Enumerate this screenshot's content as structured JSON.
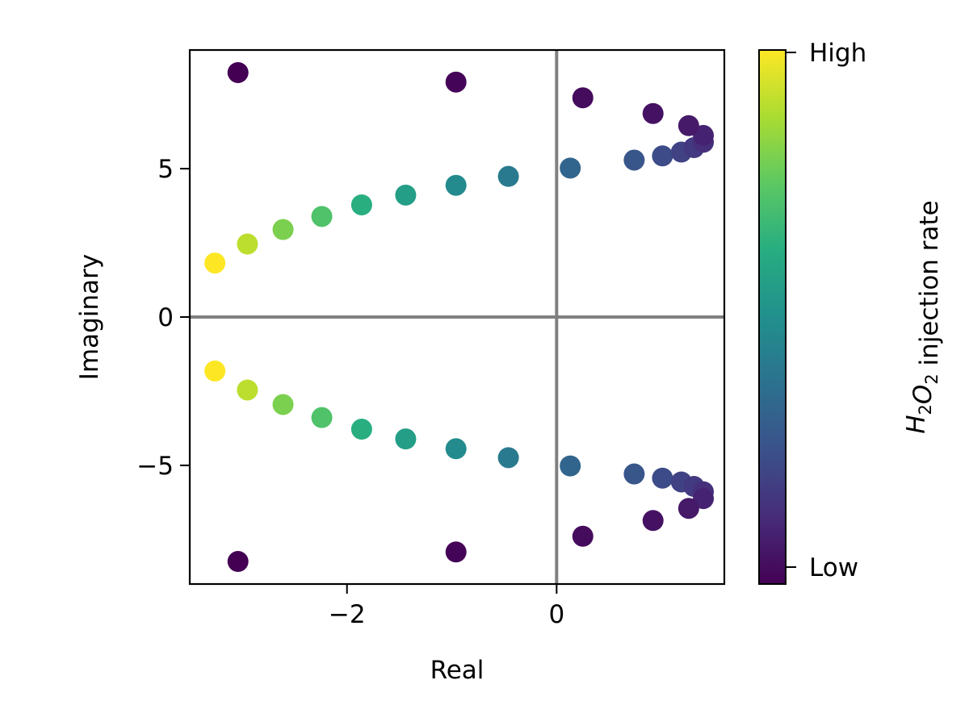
{
  "chart_data": {
    "type": "scatter",
    "title": "",
    "xlabel": "Real",
    "ylabel": "Imaginary",
    "xlim": [
      -3.5,
      1.6
    ],
    "ylim": [
      -9.0,
      9.0
    ],
    "xticks": [
      -2,
      0
    ],
    "xtick_labels": [
      "−2",
      "0"
    ],
    "yticks": [
      -5,
      0,
      5
    ],
    "ytick_labels": [
      "−5",
      "0",
      "5"
    ],
    "grid": false,
    "reference_lines": {
      "x": 0,
      "y": 0,
      "color": "#808080"
    },
    "colormap": "viridis",
    "colorbar": {
      "label_parts": [
        {
          "text": "H",
          "style": "italic"
        },
        {
          "text": "2",
          "style": "sub"
        },
        {
          "text": "O",
          "style": "italic"
        },
        {
          "text": "2",
          "style": "sub"
        },
        {
          "text": " injection rate",
          "style": "normal"
        }
      ],
      "high_label": "High",
      "low_label": "Low"
    },
    "points": [
      {
        "x": -3.26,
        "y": 1.82,
        "c": 1.0
      },
      {
        "x": -3.26,
        "y": -1.82,
        "c": 1.0
      },
      {
        "x": -2.95,
        "y": 2.46,
        "c": 0.9
      },
      {
        "x": -2.95,
        "y": -2.46,
        "c": 0.9
      },
      {
        "x": -2.61,
        "y": 2.95,
        "c": 0.8
      },
      {
        "x": -2.61,
        "y": -2.95,
        "c": 0.8
      },
      {
        "x": -2.24,
        "y": 3.39,
        "c": 0.72
      },
      {
        "x": -2.24,
        "y": -3.39,
        "c": 0.72
      },
      {
        "x": -1.86,
        "y": 3.78,
        "c": 0.63
      },
      {
        "x": -1.86,
        "y": -3.78,
        "c": 0.63
      },
      {
        "x": -1.44,
        "y": 4.11,
        "c": 0.56
      },
      {
        "x": -1.44,
        "y": -4.11,
        "c": 0.56
      },
      {
        "x": -0.96,
        "y": 4.44,
        "c": 0.48
      },
      {
        "x": -0.96,
        "y": -4.44,
        "c": 0.48
      },
      {
        "x": -0.46,
        "y": 4.74,
        "c": 0.41
      },
      {
        "x": -0.46,
        "y": -4.74,
        "c": 0.41
      },
      {
        "x": 0.13,
        "y": 5.02,
        "c": 0.33
      },
      {
        "x": 0.13,
        "y": -5.02,
        "c": 0.33
      },
      {
        "x": 0.74,
        "y": 5.29,
        "c": 0.27
      },
      {
        "x": 0.74,
        "y": -5.29,
        "c": 0.27
      },
      {
        "x": 1.01,
        "y": 5.43,
        "c": 0.23
      },
      {
        "x": 1.01,
        "y": -5.43,
        "c": 0.23
      },
      {
        "x": 1.19,
        "y": 5.56,
        "c": 0.2
      },
      {
        "x": 1.19,
        "y": -5.56,
        "c": 0.2
      },
      {
        "x": 1.31,
        "y": 5.71,
        "c": 0.17
      },
      {
        "x": 1.31,
        "y": -5.71,
        "c": 0.17
      },
      {
        "x": 1.4,
        "y": 5.89,
        "c": 0.14
      },
      {
        "x": 1.4,
        "y": -5.89,
        "c": 0.14
      },
      {
        "x": 1.4,
        "y": 6.12,
        "c": 0.1
      },
      {
        "x": 1.4,
        "y": -6.12,
        "c": 0.1
      },
      {
        "x": 1.26,
        "y": 6.45,
        "c": 0.07
      },
      {
        "x": 1.26,
        "y": -6.45,
        "c": 0.07
      },
      {
        "x": 0.92,
        "y": 6.86,
        "c": 0.05
      },
      {
        "x": 0.92,
        "y": -6.86,
        "c": 0.05
      },
      {
        "x": 0.25,
        "y": 7.39,
        "c": 0.03
      },
      {
        "x": 0.25,
        "y": -7.39,
        "c": 0.03
      },
      {
        "x": -0.96,
        "y": 7.92,
        "c": 0.01
      },
      {
        "x": -0.96,
        "y": -7.92,
        "c": 0.01
      },
      {
        "x": -3.04,
        "y": 8.24,
        "c": 0.0
      },
      {
        "x": -3.04,
        "y": -8.24,
        "c": 0.0
      }
    ]
  }
}
